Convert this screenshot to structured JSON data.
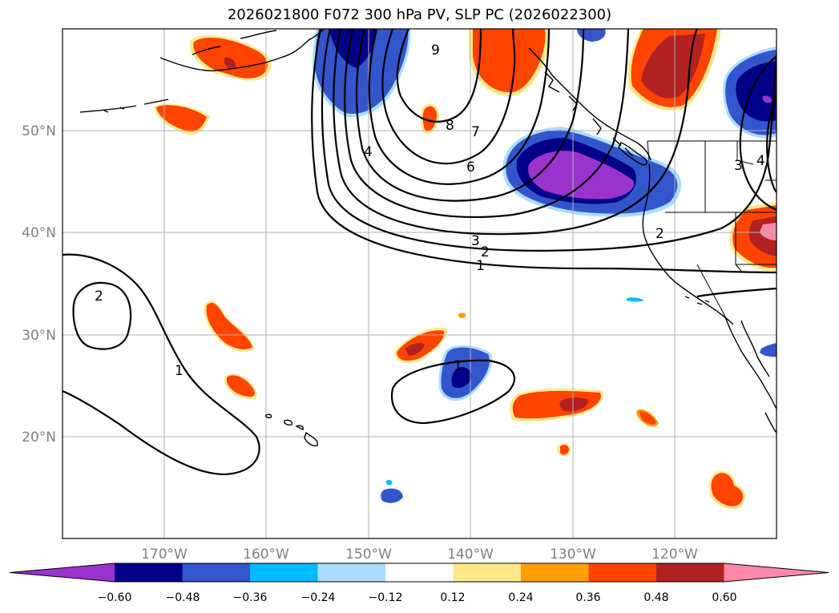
{
  "title": "2026021800 F072 300 hPa PV, SLP PC (2026022300)",
  "lat_labels": [
    "50°N",
    "40°N",
    "30°N",
    "20°N"
  ],
  "lon_labels": [
    "170°W",
    "160°W",
    "150°W",
    "140°W",
    "130°W",
    "120°W"
  ],
  "colorbar": {
    "ticks": [
      "−0.60",
      "−0.48",
      "−0.36",
      "−0.24",
      "−0.12",
      "0.12",
      "0.24",
      "0.36",
      "0.48",
      "0.60"
    ],
    "colors": [
      "#9933cc",
      "#000088",
      "#3355cc",
      "#00bbff",
      "#aaddff",
      "#ffffff",
      "#ffe88a",
      "#ffa000",
      "#ff4400",
      "#b22222",
      "#ff88aa"
    ]
  },
  "contour_labels": [
    "9",
    "8",
    "7",
    "6",
    "4",
    "3",
    "2",
    "1",
    "2",
    "1",
    "1",
    "3",
    "2",
    "4"
  ]
}
